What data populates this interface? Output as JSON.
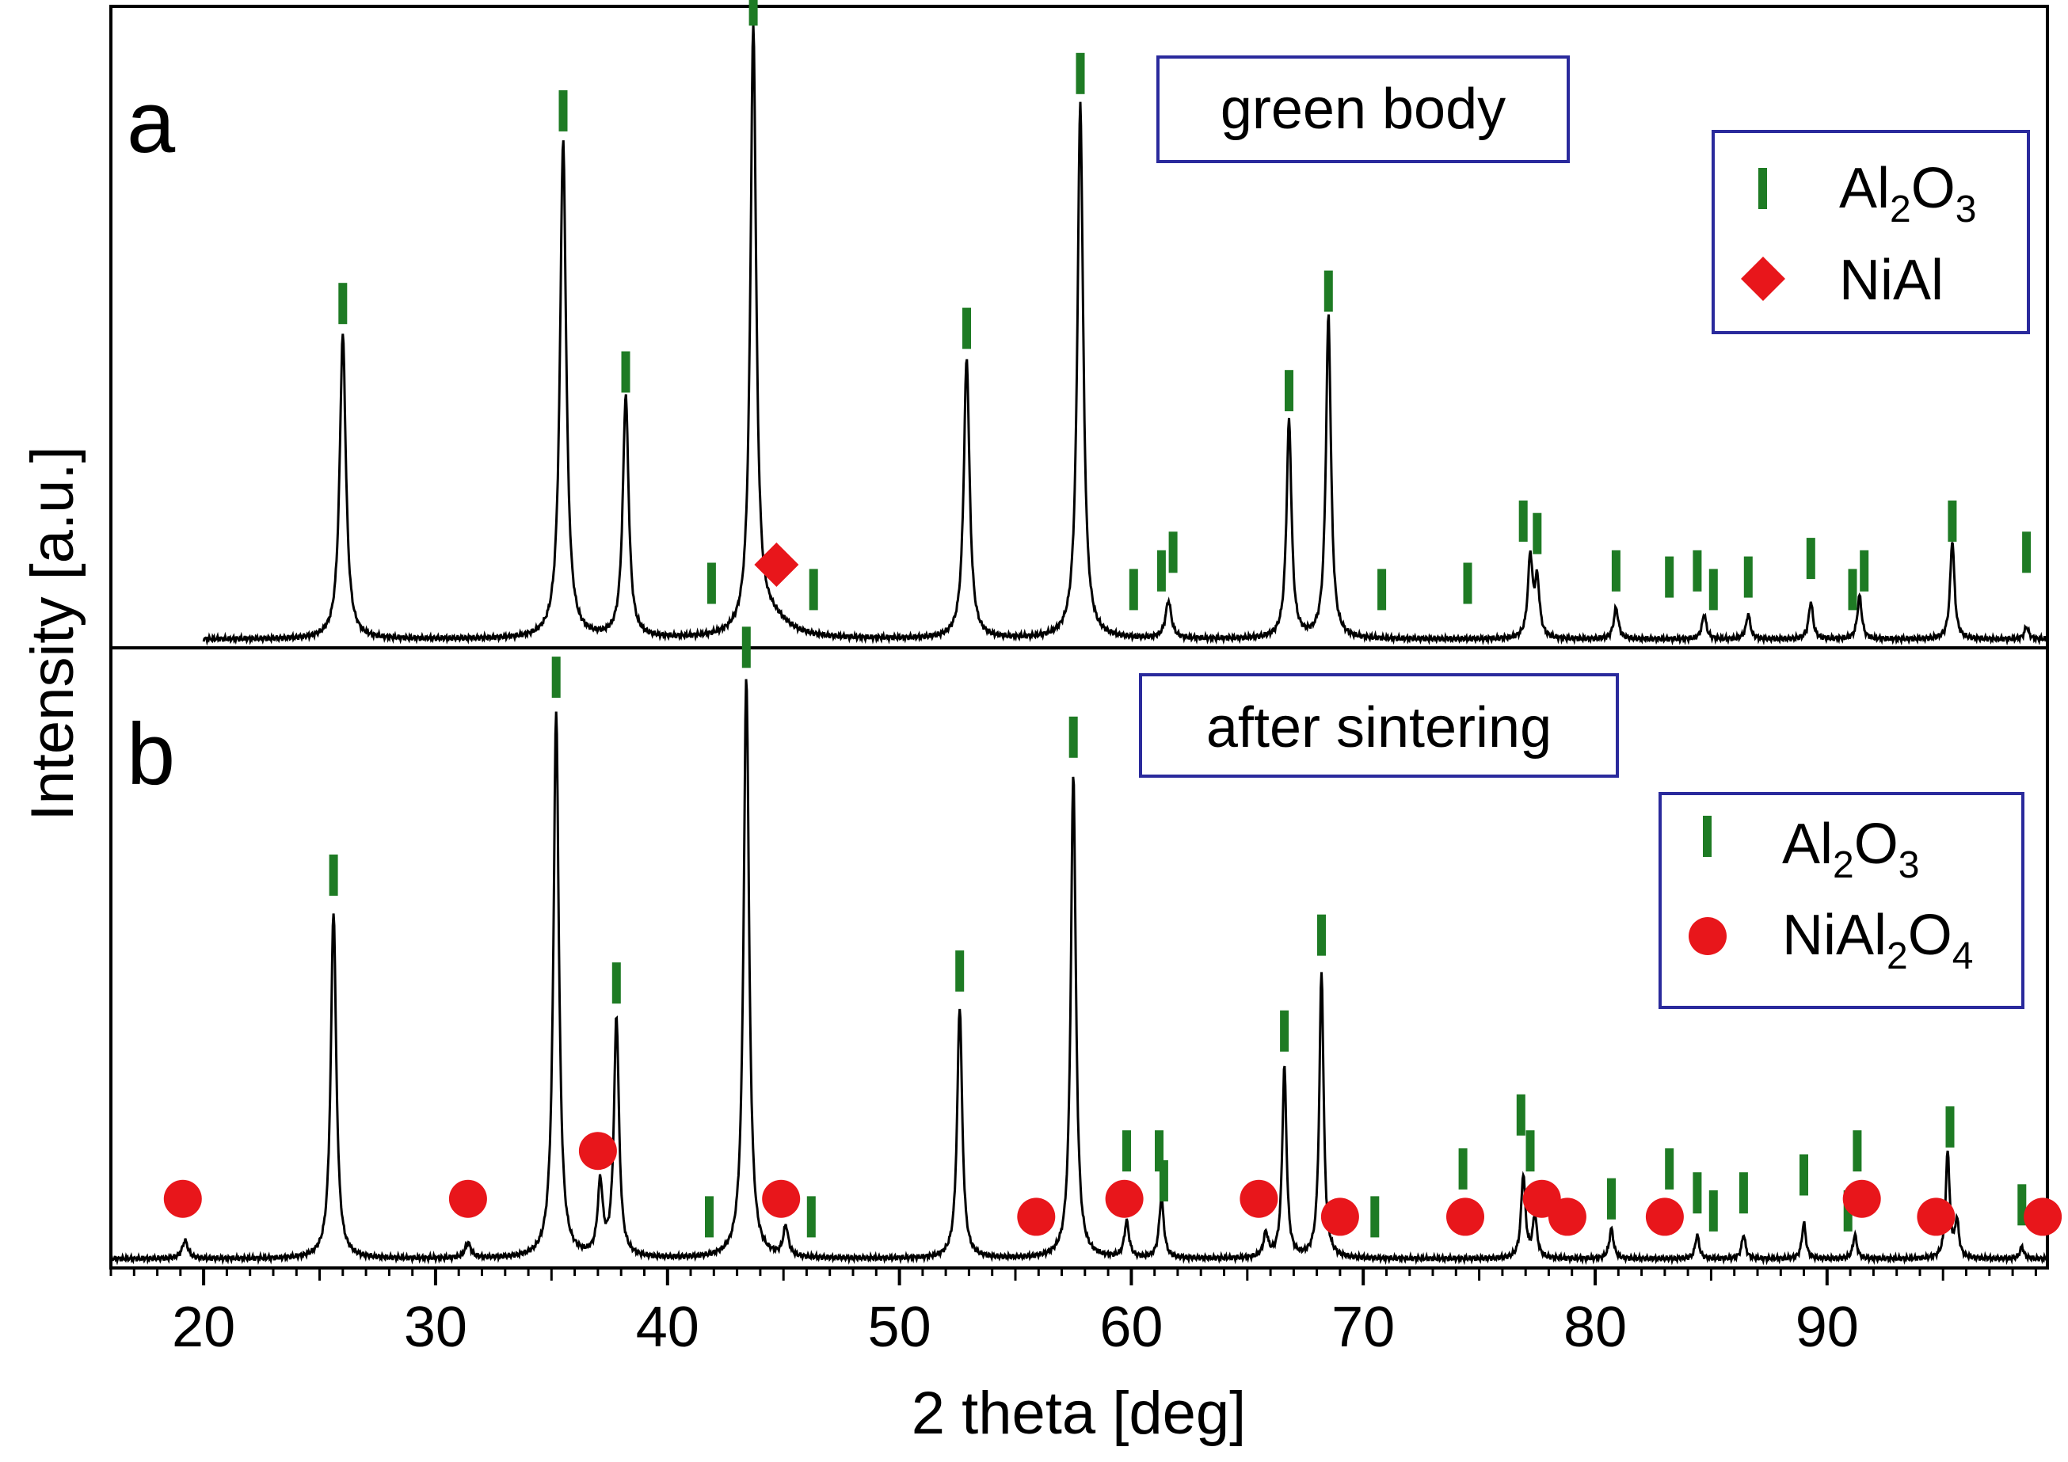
{
  "chart_data": {
    "type": "line",
    "xlabel": "2 theta [deg]",
    "ylabel": "Intensity [a.u.]",
    "xlim": [
      16,
      99.5
    ],
    "ylim": [
      0,
      1
    ],
    "x_ticks": [
      20,
      30,
      40,
      50,
      60,
      70,
      80,
      90
    ],
    "x_tick_labels": [
      "20",
      "30",
      "40",
      "50",
      "60",
      "70",
      "80",
      "90"
    ],
    "panels": [
      {
        "label": "a",
        "title": "green body",
        "legend": [
          {
            "marker": "tick",
            "text": "Al",
            "sub": "2",
            "text2": "O",
            "sub2": "3"
          },
          {
            "marker": "diamond",
            "text": "NiAl",
            "sub": "",
            "text2": "",
            "sub2": ""
          }
        ],
        "x_start": 20,
        "baseline": 0.01,
        "peaks": [
          {
            "x": 26.0,
            "h": 0.49,
            "w": 0.16
          },
          {
            "x": 35.5,
            "h": 0.8,
            "w": 0.16
          },
          {
            "x": 38.2,
            "h": 0.39,
            "w": 0.15
          },
          {
            "x": 43.7,
            "h": 0.97,
            "w": 0.15
          },
          {
            "x": 44.5,
            "h": 0.03,
            "w": 0.9
          },
          {
            "x": 52.9,
            "h": 0.45,
            "w": 0.15
          },
          {
            "x": 57.8,
            "h": 0.86,
            "w": 0.15
          },
          {
            "x": 61.6,
            "h": 0.06,
            "w": 0.15
          },
          {
            "x": 66.8,
            "h": 0.35,
            "w": 0.13
          },
          {
            "x": 68.5,
            "h": 0.52,
            "w": 0.13
          },
          {
            "x": 77.2,
            "h": 0.13,
            "w": 0.12
          },
          {
            "x": 77.5,
            "h": 0.09,
            "w": 0.12
          },
          {
            "x": 80.9,
            "h": 0.05,
            "w": 0.12
          },
          {
            "x": 84.7,
            "h": 0.04,
            "w": 0.11
          },
          {
            "x": 86.6,
            "h": 0.04,
            "w": 0.11
          },
          {
            "x": 89.3,
            "h": 0.06,
            "w": 0.11
          },
          {
            "x": 91.4,
            "h": 0.07,
            "w": 0.11
          },
          {
            "x": 95.4,
            "h": 0.16,
            "w": 0.11
          },
          {
            "x": 98.6,
            "h": 0.02,
            "w": 0.11
          }
        ],
        "al2o3_ticks": [
          {
            "x": 26.0,
            "y": 0.55
          },
          {
            "x": 35.5,
            "y": 0.86
          },
          {
            "x": 38.2,
            "y": 0.44
          },
          {
            "x": 41.9,
            "y": 0.1
          },
          {
            "x": 43.7,
            "y": 1.03
          },
          {
            "x": 46.3,
            "y": 0.09
          },
          {
            "x": 52.9,
            "y": 0.51
          },
          {
            "x": 57.8,
            "y": 0.92
          },
          {
            "x": 60.1,
            "y": 0.09
          },
          {
            "x": 61.3,
            "y": 0.12
          },
          {
            "x": 61.8,
            "y": 0.15
          },
          {
            "x": 66.8,
            "y": 0.41
          },
          {
            "x": 68.5,
            "y": 0.57
          },
          {
            "x": 70.8,
            "y": 0.09
          },
          {
            "x": 74.5,
            "y": 0.1
          },
          {
            "x": 76.9,
            "y": 0.2
          },
          {
            "x": 77.5,
            "y": 0.18
          },
          {
            "x": 80.9,
            "y": 0.12
          },
          {
            "x": 83.2,
            "y": 0.11
          },
          {
            "x": 84.4,
            "y": 0.12
          },
          {
            "x": 85.1,
            "y": 0.09
          },
          {
            "x": 86.6,
            "y": 0.11
          },
          {
            "x": 89.3,
            "y": 0.14
          },
          {
            "x": 91.1,
            "y": 0.09
          },
          {
            "x": 91.6,
            "y": 0.12
          },
          {
            "x": 95.4,
            "y": 0.2
          },
          {
            "x": 98.6,
            "y": 0.15
          }
        ],
        "markers": [
          {
            "shape": "diamond",
            "x": 44.7,
            "y": 0.13
          }
        ]
      },
      {
        "label": "b",
        "title": "after sintering",
        "legend": [
          {
            "marker": "tick",
            "text": "Al",
            "sub": "2",
            "text2": "O",
            "sub2": "3"
          },
          {
            "marker": "circle",
            "text": "NiAl",
            "sub": "2",
            "text2": "O",
            "sub2": "4"
          }
        ],
        "x_start": 16,
        "baseline": 0.01,
        "peaks": [
          {
            "x": 19.2,
            "h": 0.03,
            "w": 0.15
          },
          {
            "x": 25.6,
            "h": 0.58,
            "w": 0.14
          },
          {
            "x": 31.4,
            "h": 0.025,
            "w": 0.15
          },
          {
            "x": 35.2,
            "h": 0.91,
            "w": 0.14
          },
          {
            "x": 37.1,
            "h": 0.12,
            "w": 0.13
          },
          {
            "x": 37.8,
            "h": 0.4,
            "w": 0.13
          },
          {
            "x": 43.4,
            "h": 0.97,
            "w": 0.14
          },
          {
            "x": 45.1,
            "h": 0.05,
            "w": 0.13
          },
          {
            "x": 52.6,
            "h": 0.42,
            "w": 0.13
          },
          {
            "x": 57.5,
            "h": 0.81,
            "w": 0.13
          },
          {
            "x": 59.8,
            "h": 0.06,
            "w": 0.12
          },
          {
            "x": 61.3,
            "h": 0.1,
            "w": 0.12
          },
          {
            "x": 65.8,
            "h": 0.04,
            "w": 0.12
          },
          {
            "x": 66.6,
            "h": 0.32,
            "w": 0.11
          },
          {
            "x": 68.2,
            "h": 0.48,
            "w": 0.11
          },
          {
            "x": 76.9,
            "h": 0.14,
            "w": 0.11
          },
          {
            "x": 77.4,
            "h": 0.07,
            "w": 0.11
          },
          {
            "x": 80.7,
            "h": 0.05,
            "w": 0.11
          },
          {
            "x": 84.4,
            "h": 0.04,
            "w": 0.1
          },
          {
            "x": 86.4,
            "h": 0.04,
            "w": 0.1
          },
          {
            "x": 89.0,
            "h": 0.06,
            "w": 0.1
          },
          {
            "x": 91.2,
            "h": 0.04,
            "w": 0.1
          },
          {
            "x": 95.2,
            "h": 0.18,
            "w": 0.1
          },
          {
            "x": 95.6,
            "h": 0.06,
            "w": 0.1
          },
          {
            "x": 98.4,
            "h": 0.02,
            "w": 0.1
          }
        ],
        "al2o3_ticks": [
          {
            "x": 25.6,
            "y": 0.65
          },
          {
            "x": 35.2,
            "y": 0.98
          },
          {
            "x": 37.8,
            "y": 0.47
          },
          {
            "x": 41.8,
            "y": 0.08
          },
          {
            "x": 43.4,
            "y": 1.03
          },
          {
            "x": 46.2,
            "y": 0.08
          },
          {
            "x": 52.6,
            "y": 0.49
          },
          {
            "x": 57.5,
            "y": 0.88
          },
          {
            "x": 59.8,
            "y": 0.19
          },
          {
            "x": 61.2,
            "y": 0.19
          },
          {
            "x": 61.4,
            "y": 0.14
          },
          {
            "x": 66.6,
            "y": 0.39
          },
          {
            "x": 68.2,
            "y": 0.55
          },
          {
            "x": 70.5,
            "y": 0.08
          },
          {
            "x": 74.3,
            "y": 0.16
          },
          {
            "x": 76.8,
            "y": 0.25
          },
          {
            "x": 77.2,
            "y": 0.19
          },
          {
            "x": 80.7,
            "y": 0.11
          },
          {
            "x": 83.2,
            "y": 0.16
          },
          {
            "x": 84.4,
            "y": 0.12
          },
          {
            "x": 85.1,
            "y": 0.09
          },
          {
            "x": 86.4,
            "y": 0.12
          },
          {
            "x": 89.0,
            "y": 0.15
          },
          {
            "x": 90.9,
            "y": 0.09
          },
          {
            "x": 91.3,
            "y": 0.19
          },
          {
            "x": 95.3,
            "y": 0.23
          },
          {
            "x": 98.4,
            "y": 0.1
          }
        ],
        "markers": [
          {
            "shape": "circle",
            "x": 19.1,
            "y": 0.11
          },
          {
            "shape": "circle",
            "x": 31.4,
            "y": 0.11
          },
          {
            "shape": "circle",
            "x": 37.0,
            "y": 0.19
          },
          {
            "shape": "circle",
            "x": 44.9,
            "y": 0.11
          },
          {
            "shape": "circle",
            "x": 55.9,
            "y": 0.08
          },
          {
            "shape": "circle",
            "x": 59.7,
            "y": 0.11
          },
          {
            "shape": "circle",
            "x": 65.5,
            "y": 0.11
          },
          {
            "shape": "circle",
            "x": 69.0,
            "y": 0.08
          },
          {
            "shape": "circle",
            "x": 74.4,
            "y": 0.08
          },
          {
            "shape": "circle",
            "x": 77.7,
            "y": 0.11
          },
          {
            "shape": "circle",
            "x": 78.8,
            "y": 0.08
          },
          {
            "shape": "circle",
            "x": 83.0,
            "y": 0.08
          },
          {
            "shape": "circle",
            "x": 91.5,
            "y": 0.11
          },
          {
            "shape": "circle",
            "x": 94.7,
            "y": 0.08
          },
          {
            "shape": "circle",
            "x": 99.3,
            "y": 0.08
          }
        ]
      }
    ]
  },
  "colors": {
    "line": "#000000",
    "al2o3_tick": "#1e7b24",
    "marker": "#e8161b",
    "box_border": "#2a2a9c"
  }
}
